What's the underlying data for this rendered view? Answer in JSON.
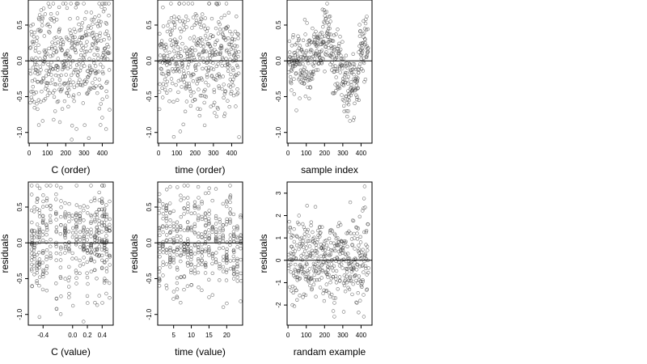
{
  "chart_data": [
    {
      "type": "scatter",
      "xlabel": "C (order)",
      "ylabel": "residuals",
      "xlim": [
        -5,
        460
      ],
      "ylim": [
        -1.15,
        0.85
      ],
      "xticks": [
        0,
        100,
        200,
        300,
        400
      ],
      "yticks": [
        -1.0,
        -0.5,
        0.0,
        0.5
      ],
      "yticklabels": [
        "-1.0",
        "-0.5",
        "0.0",
        "0.5"
      ],
      "hline": 0,
      "n_points": 440,
      "pattern": "uniform",
      "point_sample": {
        "x": [
          5,
          20,
          40,
          65,
          90,
          110,
          140,
          160,
          200,
          220,
          250,
          275,
          300,
          330,
          360,
          390,
          410,
          430,
          445
        ],
        "y": [
          0.15,
          -0.45,
          0.55,
          -0.8,
          0.3,
          -0.65,
          0.7,
          -0.2,
          0.75,
          -0.55,
          0.1,
          0.45,
          -0.3,
          0.2,
          -0.4,
          0.35,
          -0.85,
          0.25,
          -0.5
        ]
      }
    },
    {
      "type": "scatter",
      "xlabel": "time (order)",
      "ylabel": "residuals",
      "xlim": [
        -5,
        460
      ],
      "ylim": [
        -1.15,
        0.85
      ],
      "xticks": [
        0,
        100,
        200,
        300,
        400
      ],
      "yticks": [
        -1.0,
        -0.5,
        0.0,
        0.5
      ],
      "yticklabels": [
        "-1.0",
        "-0.5",
        "0.0",
        "0.5"
      ],
      "hline": 0,
      "n_points": 440,
      "pattern": "uniform",
      "point_sample": {
        "x": [
          5,
          30,
          60,
          80,
          110,
          140,
          170,
          200,
          230,
          260,
          290,
          320,
          350,
          380,
          410,
          430,
          450
        ],
        "y": [
          -1.1,
          0.3,
          -0.6,
          0.45,
          -0.85,
          0.2,
          0.35,
          -0.2,
          0.55,
          -0.1,
          0.7,
          -1.0,
          0.4,
          -0.3,
          0.75,
          0.1,
          -0.45
        ]
      }
    },
    {
      "type": "scatter",
      "xlabel": "sample index",
      "ylabel": "residuals",
      "xlim": [
        -5,
        460
      ],
      "ylim": [
        -1.15,
        0.85
      ],
      "xticks": [
        0,
        100,
        200,
        300,
        400
      ],
      "yticks": [
        -1.0,
        -0.5,
        0.0,
        0.5
      ],
      "yticklabels": [
        "-1.0",
        "-0.5",
        "0.0",
        "0.5"
      ],
      "hline": 0,
      "n_points": 440,
      "pattern": "index",
      "point_sample": {
        "x": [
          0,
          40,
          80,
          120,
          160,
          200,
          230,
          260,
          300,
          330,
          360,
          380,
          400,
          420,
          440
        ],
        "y": [
          0.0,
          -0.05,
          -0.1,
          0.1,
          0.2,
          0.4,
          0.35,
          0.05,
          -0.2,
          -0.35,
          -0.5,
          -0.3,
          0.1,
          0.25,
          0.2
        ]
      }
    },
    {
      "type": "scatter",
      "xlabel": "C (value)",
      "ylabel": "residuals",
      "xlim": [
        -0.6,
        0.55
      ],
      "ylim": [
        -1.15,
        0.85
      ],
      "xticks": [
        -0.4,
        0.0,
        0.2,
        0.4
      ],
      "xticklabels": [
        "-0.4",
        "0.0",
        "0.2",
        "0.4"
      ],
      "yticks": [
        -1.0,
        -0.5,
        0.0,
        0.5
      ],
      "yticklabels": [
        "-1.0",
        "-0.5",
        "0.0",
        "0.5"
      ],
      "hline": 0,
      "n_points": 440,
      "pattern": "cval",
      "point_sample": {
        "x": [
          -0.55,
          -0.48,
          -0.38,
          -0.28,
          -0.16,
          0.0,
          0.05,
          0.1,
          0.2,
          0.25,
          0.33,
          0.42,
          0.48
        ],
        "y": [
          0.3,
          -0.95,
          0.7,
          0.2,
          -0.5,
          0.4,
          -1.05,
          0.1,
          -0.3,
          0.55,
          -0.7,
          0.2,
          -0.85
        ]
      }
    },
    {
      "type": "scatter",
      "xlabel": "time (value)",
      "ylabel": "residuals",
      "xlim": [
        0.5,
        24.5
      ],
      "ylim": [
        -1.15,
        0.85
      ],
      "xticks": [
        5,
        10,
        15,
        20
      ],
      "yticks": [
        -1.0,
        -0.5,
        0.0,
        0.5
      ],
      "yticklabels": [
        "-1.0",
        "-0.5",
        "0.0",
        "0.5"
      ],
      "hline": 0,
      "n_points": 440,
      "pattern": "tval",
      "point_sample": {
        "x": [
          1,
          3,
          5,
          7,
          9,
          11,
          12,
          13,
          15,
          17,
          19,
          21,
          23,
          24
        ],
        "y": [
          -1.05,
          0.35,
          -0.6,
          0.3,
          0.5,
          -0.2,
          0.05,
          -0.4,
          0.6,
          -0.3,
          0.4,
          -1.0,
          0.75,
          -0.45
        ]
      }
    },
    {
      "type": "scatter",
      "xlabel": "randam example",
      "ylabel": "residuals",
      "xlim": [
        -5,
        460
      ],
      "ylim": [
        -2.9,
        3.5
      ],
      "xticks": [
        0,
        100,
        200,
        300,
        400
      ],
      "yticks": [
        -2,
        -1,
        0,
        1,
        2,
        3
      ],
      "yticklabels": [
        "-2",
        "-1",
        "0",
        "1",
        "2",
        "3"
      ],
      "hline": 0,
      "n_points": 440,
      "pattern": "normal",
      "point_sample": {
        "x": [
          10,
          50,
          90,
          130,
          170,
          220,
          260,
          300,
          340,
          380,
          420,
          440
        ],
        "y": [
          1.5,
          -2.1,
          0.4,
          -1.0,
          2.2,
          -0.3,
          2.8,
          -1.6,
          0.9,
          -2.3,
          3.25,
          -0.7
        ]
      }
    }
  ]
}
